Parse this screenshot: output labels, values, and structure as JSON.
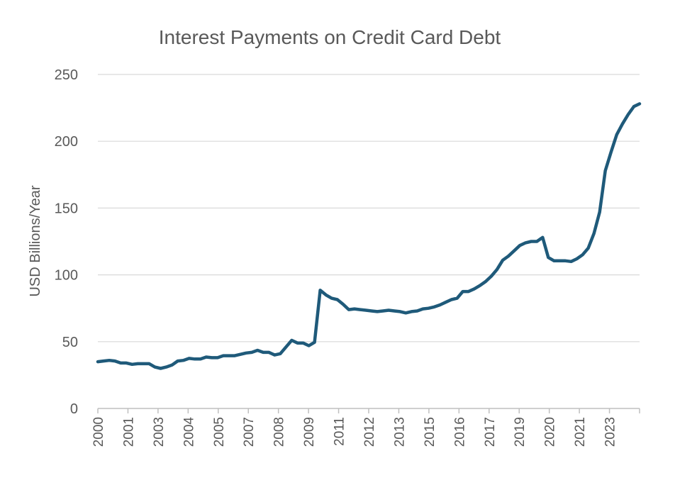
{
  "chart_data": {
    "type": "line",
    "title": "Interest Payments on Credit Card Debt",
    "xlabel": "",
    "ylabel": "USD Billions/Year",
    "ylim": [
      0,
      250
    ],
    "yticks": [
      0,
      50,
      100,
      150,
      200,
      250
    ],
    "xticks": [
      "2000",
      "2001",
      "2003",
      "2004",
      "2005",
      "2007",
      "2008",
      "2009",
      "2011",
      "2012",
      "2013",
      "2015",
      "2016",
      "2017",
      "2019",
      "2020",
      "2021",
      "2023"
    ],
    "grid": true,
    "legend": "none",
    "colors": {
      "line": "#1f5a7a"
    },
    "series": [
      {
        "values": [
          35,
          35.5,
          36,
          35.5,
          34,
          34,
          33,
          33.5,
          33.5,
          33.5,
          31,
          30,
          31,
          32.5,
          35.5,
          36,
          37.5,
          37,
          37,
          38.5,
          38,
          38,
          39.5,
          39.5,
          39.5,
          40.5,
          41.5,
          42,
          43.5,
          42,
          42,
          40,
          41,
          46,
          51,
          49,
          49,
          47,
          49.5,
          88.5,
          85,
          82.5,
          81.5,
          78,
          74,
          74.5,
          74,
          73.5,
          73,
          72.5,
          73,
          73.5,
          73,
          72.5,
          71.5,
          72.5,
          73,
          74.5,
          75,
          76,
          77.5,
          79.5,
          81.5,
          82.5,
          87.5,
          87.5,
          89.5,
          92,
          95,
          99,
          104,
          111,
          114,
          118,
          122,
          124,
          125,
          125,
          128,
          113,
          110.5,
          110.5,
          110.5,
          110,
          112,
          115,
          120,
          131,
          147,
          178,
          192,
          205,
          213,
          220,
          226,
          228
        ]
      }
    ]
  }
}
